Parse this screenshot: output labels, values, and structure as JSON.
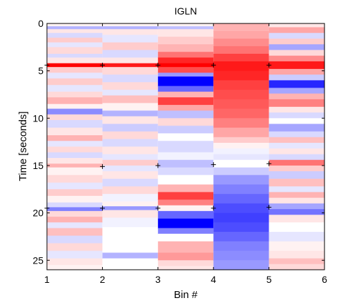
{
  "chart_data": {
    "type": "heatmap",
    "title": "IGLN",
    "xlabel": "Bin #",
    "ylabel": "Time [seconds]",
    "xlim": [
      1,
      6
    ],
    "ylim": [
      0,
      26
    ],
    "y_reversed": true,
    "xticks": [
      "1",
      "2",
      "3",
      "4",
      "5",
      "6"
    ],
    "yticks": [
      "0",
      "5",
      "10",
      "15",
      "20",
      "25"
    ],
    "ytick_values": [
      0,
      5,
      10,
      15,
      20,
      25
    ],
    "colormap": {
      "negative": "#0000ff",
      "zero": "#ffffff",
      "positive": "#ff0000",
      "range": [
        -1,
        1
      ]
    },
    "columns": [
      {
        "bin": "1-2",
        "bands": [
          [
            0.0,
            0.3,
            0.05
          ],
          [
            0.3,
            0.6,
            -0.3
          ],
          [
            0.6,
            1.0,
            0.1
          ],
          [
            1.0,
            1.5,
            -0.15
          ],
          [
            1.5,
            2.0,
            0.2
          ],
          [
            2.0,
            2.5,
            -0.1
          ],
          [
            2.5,
            3.2,
            0.15
          ],
          [
            3.2,
            3.6,
            -0.15
          ],
          [
            3.6,
            4.2,
            0.1
          ],
          [
            4.2,
            4.6,
            1.0
          ],
          [
            4.6,
            5.2,
            0.2
          ],
          [
            5.2,
            5.8,
            -0.1
          ],
          [
            5.8,
            6.5,
            0.2
          ],
          [
            6.5,
            7.2,
            -0.1
          ],
          [
            7.2,
            7.8,
            0.15
          ],
          [
            7.8,
            8.5,
            0.3
          ],
          [
            8.5,
            9.0,
            0.05
          ],
          [
            9.0,
            9.6,
            -0.45
          ],
          [
            9.6,
            10.2,
            0.15
          ],
          [
            10.2,
            11.0,
            -0.15
          ],
          [
            11.0,
            11.8,
            0.1
          ],
          [
            11.8,
            12.4,
            0.3
          ],
          [
            12.4,
            13.0,
            -0.1
          ],
          [
            13.0,
            13.6,
            0.15
          ],
          [
            13.6,
            14.2,
            -0.15
          ],
          [
            14.2,
            14.8,
            0.1
          ],
          [
            14.8,
            15.2,
            0.3
          ],
          [
            15.2,
            16.0,
            0.05
          ],
          [
            16.0,
            16.8,
            0.15
          ],
          [
            16.8,
            17.5,
            -0.1
          ],
          [
            17.5,
            18.2,
            0.2
          ],
          [
            18.2,
            18.9,
            0.05
          ],
          [
            18.9,
            19.4,
            -0.15
          ],
          [
            19.4,
            19.8,
            -0.5
          ],
          [
            19.8,
            20.4,
            0.15
          ],
          [
            20.4,
            21.0,
            0.3
          ],
          [
            21.0,
            21.6,
            -0.1
          ],
          [
            21.6,
            22.4,
            0.25
          ],
          [
            22.4,
            23.2,
            -0.15
          ],
          [
            23.2,
            24.0,
            0.15
          ],
          [
            24.0,
            24.8,
            -0.1
          ],
          [
            24.8,
            25.5,
            0.1
          ],
          [
            25.5,
            26.0,
            0.05
          ]
        ]
      },
      {
        "bin": "2-3",
        "bands": [
          [
            0.0,
            0.3,
            0.05
          ],
          [
            0.3,
            0.6,
            -0.3
          ],
          [
            0.6,
            1.2,
            0.1
          ],
          [
            1.2,
            2.0,
            -0.1
          ],
          [
            2.0,
            2.8,
            0.2
          ],
          [
            2.8,
            3.6,
            -0.15
          ],
          [
            3.6,
            4.2,
            0.1
          ],
          [
            4.2,
            4.6,
            0.9
          ],
          [
            4.6,
            5.4,
            0.15
          ],
          [
            5.4,
            6.2,
            -0.15
          ],
          [
            6.2,
            7.0,
            0.15
          ],
          [
            7.0,
            7.6,
            -0.1
          ],
          [
            7.6,
            8.4,
            0.25
          ],
          [
            8.4,
            9.2,
            0.05
          ],
          [
            9.2,
            9.8,
            -0.3
          ],
          [
            9.8,
            10.6,
            0.1
          ],
          [
            10.6,
            11.4,
            -0.2
          ],
          [
            11.4,
            12.2,
            0.15
          ],
          [
            12.2,
            13.0,
            -0.15
          ],
          [
            13.0,
            13.8,
            0.1
          ],
          [
            13.8,
            14.4,
            -0.1
          ],
          [
            14.4,
            15.0,
            0.2
          ],
          [
            15.0,
            15.6,
            -0.1
          ],
          [
            15.6,
            16.4,
            0.1
          ],
          [
            16.4,
            17.2,
            -0.15
          ],
          [
            17.2,
            18.0,
            0.15
          ],
          [
            18.0,
            18.8,
            -0.05
          ],
          [
            18.8,
            19.3,
            0.05
          ],
          [
            19.3,
            19.7,
            -0.4
          ],
          [
            19.7,
            20.5,
            0.1
          ],
          [
            20.5,
            21.5,
            -0.05
          ],
          [
            21.5,
            24.2,
            0.0
          ],
          [
            24.2,
            24.8,
            -0.3
          ],
          [
            24.8,
            26.0,
            0.0
          ]
        ]
      },
      {
        "bin": "3-4",
        "bands": [
          [
            0.0,
            0.3,
            0.05
          ],
          [
            0.3,
            0.6,
            -0.25
          ],
          [
            0.6,
            1.4,
            0.1
          ],
          [
            1.4,
            2.2,
            0.2
          ],
          [
            2.2,
            3.0,
            0.3
          ],
          [
            3.0,
            3.6,
            0.55
          ],
          [
            3.6,
            4.2,
            0.85
          ],
          [
            4.2,
            4.6,
            1.0
          ],
          [
            4.6,
            5.2,
            0.7
          ],
          [
            5.2,
            5.6,
            -0.4
          ],
          [
            5.6,
            6.6,
            -1.0
          ],
          [
            6.6,
            7.2,
            -0.6
          ],
          [
            7.2,
            7.8,
            0.3
          ],
          [
            7.8,
            8.6,
            0.75
          ],
          [
            8.6,
            9.2,
            0.35
          ],
          [
            9.2,
            10.0,
            -0.25
          ],
          [
            10.0,
            10.8,
            0.15
          ],
          [
            10.8,
            11.6,
            -0.2
          ],
          [
            11.6,
            12.4,
            0.0
          ],
          [
            12.4,
            13.6,
            -0.15
          ],
          [
            13.6,
            14.4,
            -0.05
          ],
          [
            14.4,
            15.2,
            -0.25
          ],
          [
            15.2,
            16.0,
            -0.15
          ],
          [
            16.0,
            17.0,
            0.0
          ],
          [
            17.0,
            17.8,
            0.3
          ],
          [
            17.8,
            18.6,
            0.75
          ],
          [
            18.6,
            19.2,
            0.5
          ],
          [
            19.2,
            19.8,
            0.05
          ],
          [
            19.8,
            20.6,
            -0.6
          ],
          [
            20.6,
            21.6,
            -1.0
          ],
          [
            21.6,
            22.2,
            -0.5
          ],
          [
            22.2,
            23.0,
            0.0
          ],
          [
            23.0,
            24.2,
            0.3
          ],
          [
            24.2,
            25.0,
            0.4
          ],
          [
            25.0,
            25.6,
            0.15
          ],
          [
            25.6,
            26.0,
            0.1
          ]
        ]
      },
      {
        "bin": "4-5",
        "bands": [
          [
            0.0,
            0.8,
            0.3
          ],
          [
            0.8,
            1.6,
            0.35
          ],
          [
            1.6,
            2.4,
            0.45
          ],
          [
            2.4,
            3.2,
            0.55
          ],
          [
            3.2,
            4.0,
            0.75
          ],
          [
            4.0,
            5.0,
            0.9
          ],
          [
            5.0,
            6.0,
            0.85
          ],
          [
            6.0,
            7.0,
            0.75
          ],
          [
            7.0,
            8.0,
            0.7
          ],
          [
            8.0,
            9.0,
            0.65
          ],
          [
            9.0,
            10.0,
            0.6
          ],
          [
            10.0,
            11.0,
            0.5
          ],
          [
            11.0,
            12.0,
            0.35
          ],
          [
            12.0,
            12.6,
            0.2
          ],
          [
            12.6,
            13.2,
            0.05
          ],
          [
            13.2,
            13.8,
            -0.05
          ],
          [
            13.8,
            14.4,
            -0.1
          ],
          [
            14.4,
            15.2,
            0.0
          ],
          [
            15.2,
            16.0,
            -0.2
          ],
          [
            16.0,
            17.0,
            -0.4
          ],
          [
            17.0,
            18.0,
            -0.5
          ],
          [
            18.0,
            19.0,
            -0.6
          ],
          [
            19.0,
            20.0,
            -0.7
          ],
          [
            20.0,
            21.0,
            -0.75
          ],
          [
            21.0,
            22.0,
            -0.7
          ],
          [
            22.0,
            23.0,
            -0.6
          ],
          [
            23.0,
            24.0,
            -0.5
          ],
          [
            24.0,
            25.0,
            -0.45
          ],
          [
            25.0,
            26.0,
            -0.4
          ]
        ]
      },
      {
        "bin": "5-6",
        "bands": [
          [
            0.0,
            0.4,
            0.1
          ],
          [
            0.4,
            1.0,
            0.35
          ],
          [
            1.0,
            1.6,
            -0.15
          ],
          [
            1.6,
            2.2,
            0.2
          ],
          [
            2.2,
            2.8,
            -0.35
          ],
          [
            2.8,
            3.4,
            0.15
          ],
          [
            3.4,
            4.0,
            0.45
          ],
          [
            4.0,
            4.8,
            0.9
          ],
          [
            4.8,
            5.4,
            0.35
          ],
          [
            5.4,
            6.0,
            -0.2
          ],
          [
            6.0,
            6.8,
            -0.85
          ],
          [
            6.8,
            7.4,
            -0.35
          ],
          [
            7.4,
            8.0,
            0.3
          ],
          [
            8.0,
            8.8,
            0.5
          ],
          [
            8.8,
            9.4,
            0.1
          ],
          [
            9.4,
            10.0,
            -0.15
          ],
          [
            10.0,
            10.6,
            0.0
          ],
          [
            10.6,
            11.4,
            -0.35
          ],
          [
            11.4,
            12.0,
            -0.15
          ],
          [
            12.0,
            12.6,
            0.25
          ],
          [
            12.6,
            13.2,
            -0.1
          ],
          [
            13.2,
            13.8,
            0.1
          ],
          [
            13.8,
            14.4,
            -0.15
          ],
          [
            14.4,
            15.0,
            0.55
          ],
          [
            15.0,
            15.6,
            0.2
          ],
          [
            15.6,
            16.4,
            -0.2
          ],
          [
            16.4,
            17.2,
            0.25
          ],
          [
            17.2,
            17.8,
            -0.1
          ],
          [
            17.8,
            18.4,
            0.3
          ],
          [
            18.4,
            19.0,
            0.1
          ],
          [
            19.0,
            19.6,
            -0.35
          ],
          [
            19.6,
            20.2,
            -0.55
          ],
          [
            20.2,
            21.0,
            0.1
          ],
          [
            21.0,
            22.0,
            0.0
          ],
          [
            22.0,
            23.0,
            -0.1
          ],
          [
            23.0,
            24.0,
            0.05
          ],
          [
            24.0,
            24.8,
            0.1
          ],
          [
            24.8,
            25.4,
            0.25
          ],
          [
            25.4,
            26.0,
            0.15
          ]
        ]
      }
    ],
    "markers": [
      {
        "x": 1,
        "y": 4.4
      },
      {
        "x": 2,
        "y": 4.4
      },
      {
        "x": 3,
        "y": 4.4
      },
      {
        "x": 4,
        "y": 4.4
      },
      {
        "x": 5,
        "y": 4.4
      },
      {
        "x": 2,
        "y": 15.1
      },
      {
        "x": 3,
        "y": 15.0
      },
      {
        "x": 4,
        "y": 14.9
      },
      {
        "x": 5,
        "y": 14.8
      },
      {
        "x": 1,
        "y": 19.5
      },
      {
        "x": 2,
        "y": 19.5
      },
      {
        "x": 3,
        "y": 19.5
      },
      {
        "x": 4,
        "y": 19.5
      },
      {
        "x": 5,
        "y": 19.4
      }
    ],
    "grid": false,
    "legend": "none"
  }
}
